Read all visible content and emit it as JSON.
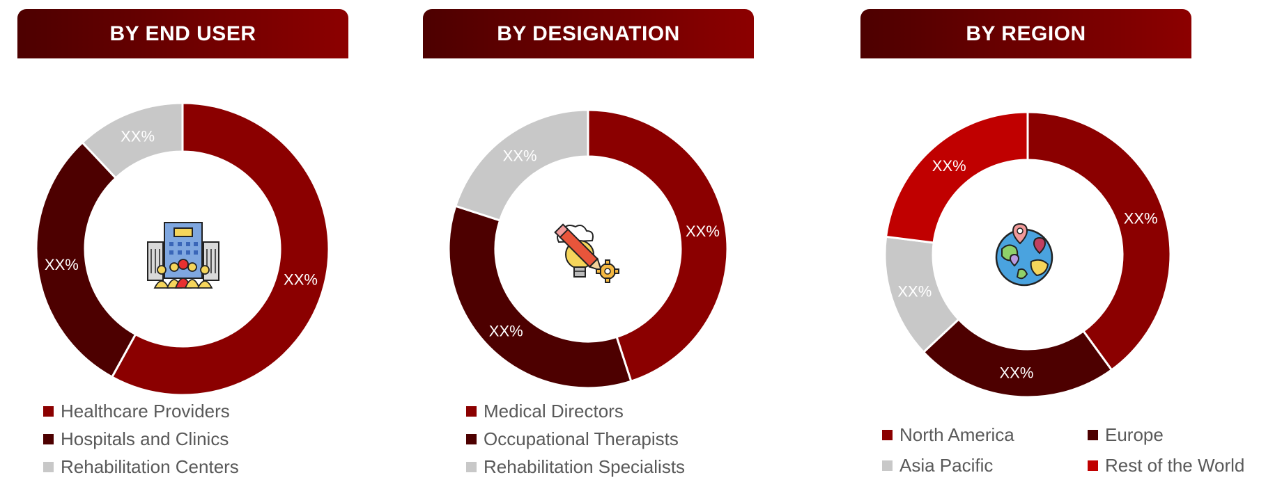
{
  "colors": {
    "dark_red": "#8b0000",
    "maroon": "#4d0000",
    "gray": "#c8c8c8",
    "bright_red": "#c00000"
  },
  "chart_data": [
    {
      "type": "pie",
      "title": "BY END USER",
      "icon": "hospital-building-icon",
      "categories": [
        "Healthcare Providers",
        "Hospitals and Clinics",
        "Rehabilitation Centers"
      ],
      "values": [
        58,
        30,
        12
      ],
      "data_labels": [
        "XX%",
        "XX%",
        "XX%"
      ],
      "colors": [
        "#8b0000",
        "#4d0000",
        "#c8c8c8"
      ],
      "legend_position": "bottom"
    },
    {
      "type": "pie",
      "title": "BY DESIGNATION",
      "icon": "idea-pencil-icon",
      "categories": [
        "Medical Directors",
        "Occupational Therapists",
        "Rehabilitation Specialists"
      ],
      "values": [
        45,
        35,
        20
      ],
      "data_labels": [
        "XX%",
        "XX%",
        "XX%"
      ],
      "colors": [
        "#8b0000",
        "#4d0000",
        "#c8c8c8"
      ],
      "legend_position": "bottom"
    },
    {
      "type": "pie",
      "title": "BY REGION",
      "icon": "globe-location-icon",
      "categories": [
        "North America",
        "Europe",
        "Asia Pacific",
        "Rest of the World"
      ],
      "values": [
        40,
        23,
        14,
        23
      ],
      "data_labels": [
        "XX%",
        "XX%",
        "XX%",
        "XX%"
      ],
      "colors": [
        "#8b0000",
        "#4d0000",
        "#c8c8c8",
        "#c00000"
      ],
      "legend_position": "bottom"
    }
  ]
}
